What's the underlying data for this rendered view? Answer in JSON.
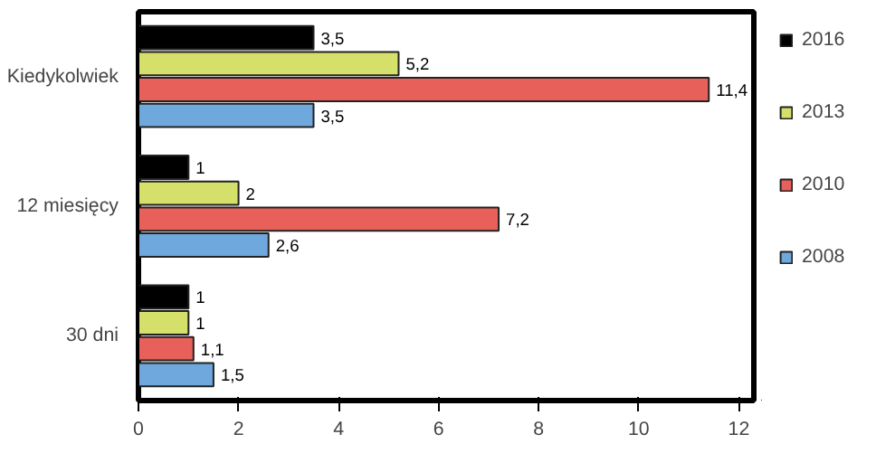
{
  "chart_data": {
    "type": "bar",
    "orientation": "horizontal",
    "categories": [
      "Kiedykolwiek",
      "12 miesięcy",
      "30 dni"
    ],
    "series": [
      {
        "name": "2016",
        "color": "#000000",
        "values": [
          3.5,
          1,
          1
        ],
        "value_labels": [
          "3,5",
          "1",
          "1"
        ]
      },
      {
        "name": "2013",
        "color": "#d4e06a",
        "values": [
          5.2,
          2,
          1
        ],
        "value_labels": [
          "5,2",
          "2",
          "1"
        ]
      },
      {
        "name": "2010",
        "color": "#e8605a",
        "values": [
          11.4,
          7.2,
          1.1
        ],
        "value_labels": [
          "11,4",
          "7,2",
          "1,1"
        ]
      },
      {
        "name": "2008",
        "color": "#6fa8dc",
        "values": [
          3.5,
          2.6,
          1.5
        ],
        "value_labels": [
          "3,5",
          "2,6",
          "1,5"
        ]
      }
    ],
    "xlim": [
      0,
      12.3
    ],
    "xticks": [
      0,
      2,
      4,
      6,
      8,
      10,
      12
    ],
    "grid": false,
    "legend": "right"
  }
}
